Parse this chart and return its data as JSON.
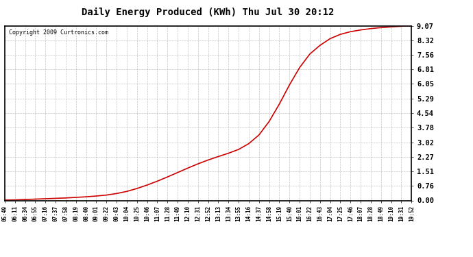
{
  "title": "Daily Energy Produced (KWh) Thu Jul 30 20:12",
  "copyright_text": "Copyright 2009 Curtronics.com",
  "line_color": "#cc0000",
  "background_color": "#ffffff",
  "grid_color": "#aaaaaa",
  "yticks": [
    0.0,
    0.76,
    1.51,
    2.27,
    3.02,
    3.78,
    4.54,
    5.29,
    6.05,
    6.81,
    7.56,
    8.32,
    9.07
  ],
  "ymax": 9.07,
  "x_labels": [
    "05:49",
    "06:11",
    "06:34",
    "06:55",
    "07:16",
    "07:37",
    "07:58",
    "08:19",
    "08:40",
    "09:01",
    "09:22",
    "09:43",
    "10:04",
    "10:25",
    "10:46",
    "11:07",
    "11:28",
    "11:49",
    "12:10",
    "12:31",
    "12:52",
    "13:13",
    "13:34",
    "13:55",
    "14:16",
    "14:37",
    "14:58",
    "15:19",
    "15:40",
    "16:01",
    "16:22",
    "16:43",
    "17:04",
    "17:25",
    "17:46",
    "18:07",
    "18:28",
    "18:49",
    "19:10",
    "19:31",
    "19:52"
  ],
  "y_data": [
    0.02,
    0.03,
    0.05,
    0.07,
    0.09,
    0.11,
    0.13,
    0.16,
    0.19,
    0.23,
    0.28,
    0.36,
    0.47,
    0.62,
    0.8,
    1.0,
    1.22,
    1.45,
    1.68,
    1.9,
    2.1,
    2.28,
    2.45,
    2.65,
    2.95,
    3.4,
    4.1,
    5.0,
    6.0,
    6.9,
    7.6,
    8.05,
    8.4,
    8.62,
    8.76,
    8.85,
    8.92,
    8.97,
    9.01,
    9.04,
    9.07
  ]
}
